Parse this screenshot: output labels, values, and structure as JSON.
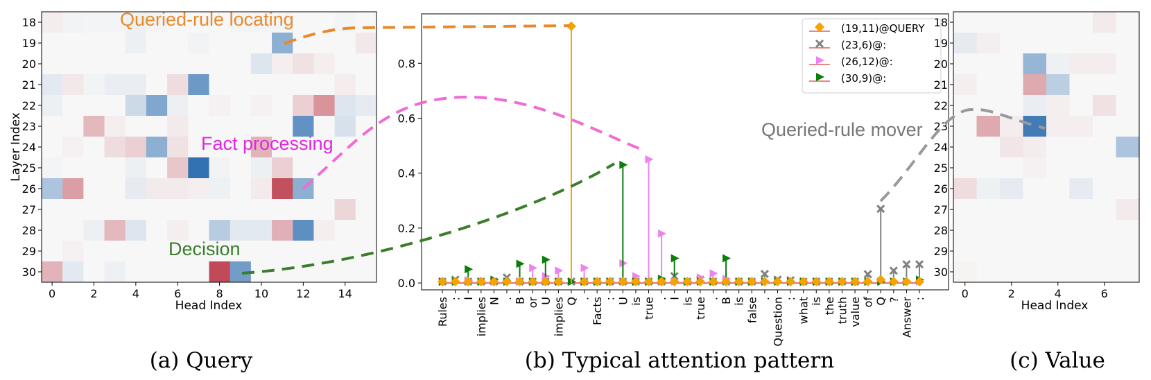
{
  "captions": {
    "a": "(a) Query",
    "b": "(b) Typical attention pattern",
    "c": "(c) Value"
  },
  "annotations": {
    "queried_rule_locating": "Queried-rule locating",
    "fact_processing": "Fact processing",
    "decision": "Decision",
    "queried_rule_mover": "Queried-rule mover"
  },
  "colors": {
    "orange": "#e88a2c",
    "magenta": "#e026e0",
    "pink_dash": "#f06bd6",
    "green": "#3a7d2a",
    "gray": "#999999",
    "series_query": "#f5a300",
    "series_gray": "#808080",
    "series_pink": "#ee82ee",
    "series_green": "#0a7d0a",
    "stem_base": "#e03c3c"
  },
  "chart_data": [
    {
      "type": "heatmap",
      "id": "query",
      "xlabel": "Head Index",
      "ylabel": "Layer Index",
      "x_ticks": [
        "0",
        "2",
        "4",
        "6",
        "8",
        "10",
        "12",
        "14"
      ],
      "y_labels": [
        "18",
        "19",
        "20",
        "21",
        "22",
        "23",
        "24",
        "25",
        "26",
        "27",
        "28",
        "29",
        "30"
      ],
      "n_cols": 16,
      "vmin": -1,
      "vmax": 1,
      "values": [
        [
          0.05,
          -0.03,
          -0.02,
          -0.02,
          -0.04,
          -0.02,
          0,
          0,
          0,
          -0.02,
          -0.02,
          -0.02,
          0,
          0,
          -0.02,
          0
        ],
        [
          0,
          0,
          0,
          0,
          -0.05,
          0,
          0,
          -0.03,
          0,
          0,
          0,
          -0.5,
          0,
          0,
          0,
          0.07
        ],
        [
          0,
          0,
          0,
          0,
          0,
          0,
          0,
          0,
          0,
          0,
          -0.12,
          0.04,
          0.1,
          0.04,
          0,
          0
        ],
        [
          -0.1,
          0.07,
          -0.03,
          -0.06,
          -0.06,
          0,
          0.12,
          -0.65,
          0,
          0,
          0,
          0,
          0,
          0,
          0.05,
          0
        ],
        [
          -0.05,
          0,
          0,
          0,
          -0.2,
          -0.55,
          -0.05,
          0,
          0.03,
          0,
          0.03,
          0,
          0.18,
          0.45,
          -0.12,
          -0.08
        ],
        [
          0,
          0,
          0.28,
          0.04,
          0,
          0,
          0.06,
          0,
          0,
          0,
          0,
          0,
          -0.7,
          0,
          -0.15,
          0
        ],
        [
          0,
          0.03,
          0,
          0.12,
          0.18,
          -0.5,
          0.1,
          0,
          0,
          0,
          0.3,
          0,
          0,
          0,
          0,
          0
        ],
        [
          -0.02,
          0,
          0,
          0,
          -0.05,
          0,
          0.22,
          -0.92,
          -0.03,
          0,
          -0.05,
          0.18,
          0,
          0,
          0,
          0
        ],
        [
          -0.35,
          0.4,
          0,
          0,
          -0.08,
          0.06,
          0.06,
          0.04,
          -0.04,
          0,
          0.06,
          0.75,
          -0.5,
          0,
          0,
          0
        ],
        [
          0,
          0,
          0,
          0,
          0,
          0,
          0,
          0,
          0,
          0,
          0,
          0,
          0,
          0,
          0.15,
          0
        ],
        [
          0,
          0,
          -0.05,
          0.28,
          -0.12,
          0,
          0.04,
          0,
          -0.3,
          -0.1,
          -0.1,
          0.32,
          -0.72,
          0.04,
          0,
          0
        ],
        [
          0,
          0.03,
          0,
          0,
          0,
          0,
          0,
          0,
          0,
          0,
          0,
          0,
          0,
          0,
          0,
          0
        ],
        [
          0.3,
          -0.1,
          0,
          -0.04,
          0,
          0,
          0,
          0,
          0.78,
          -0.62,
          0,
          0,
          0,
          0,
          0,
          0
        ]
      ]
    },
    {
      "type": "stem",
      "id": "attention",
      "yticks": [
        "0.0",
        "0.2",
        "0.4",
        "0.6",
        "0.8"
      ],
      "ylim": [
        -0.025,
        0.98
      ],
      "tokens": [
        "Rules",
        ":",
        "I",
        "implies",
        "N",
        ".",
        "B",
        "or",
        "U",
        "implies",
        "Q",
        ".",
        "Facts",
        ":",
        "U",
        "is",
        "true",
        ".",
        "I",
        "is",
        "true",
        ".",
        "B",
        "is",
        "false",
        ".",
        "Question",
        ":",
        "what",
        "is",
        "the",
        "truth",
        "value",
        "of",
        "Q",
        "?",
        "Answer",
        ":"
      ],
      "series": [
        {
          "name": "(19,11)@QUERY",
          "marker": "diamond",
          "values": [
            0.005,
            0.005,
            0.005,
            0.005,
            0.005,
            0.005,
            0.005,
            0.005,
            0.005,
            0.005,
            0.935,
            0.005,
            0.005,
            0.005,
            0.005,
            0.005,
            0.005,
            0.005,
            0.005,
            0.005,
            0.005,
            0.005,
            0.005,
            0.005,
            0.005,
            0.005,
            0.005,
            0.005,
            0.005,
            0.005,
            0.005,
            0.005,
            0.005,
            0.005,
            0.012,
            0.005,
            0.005,
            0.005
          ]
        },
        {
          "name": "(23,6)@:",
          "marker": "x",
          "values": [
            0.005,
            0.012,
            0.005,
            0.005,
            0.005,
            0.02,
            0.005,
            0.005,
            0.005,
            0.005,
            0.005,
            0.005,
            0.005,
            0.005,
            0.005,
            0.005,
            0.005,
            0.005,
            0.025,
            0.005,
            0.012,
            0.005,
            0.005,
            0.005,
            0.005,
            0.033,
            0.012,
            0.01,
            0.005,
            0.005,
            0.005,
            0.005,
            0.005,
            0.032,
            0.27,
            0.045,
            0.068,
            0.068
          ]
        },
        {
          "name": "(26,12)@:",
          "marker": "triangle",
          "values": [
            0.005,
            0.005,
            0.01,
            0.005,
            0.005,
            0.005,
            0.005,
            0.055,
            0.025,
            0.045,
            0.005,
            0.055,
            0.005,
            0.005,
            0.072,
            0.025,
            0.45,
            0.18,
            0.005,
            0.005,
            0.02,
            0.035,
            0.015,
            0.005,
            0.005,
            0.005,
            0.005,
            0.005,
            0.005,
            0.005,
            0.005,
            0.005,
            0.005,
            0.005,
            0.005,
            0.005,
            0.005,
            0.005
          ]
        },
        {
          "name": "(30,9)@:",
          "marker": "flag",
          "values": [
            0.005,
            0.005,
            0.05,
            0.005,
            0.012,
            0.005,
            0.07,
            0.005,
            0.085,
            0.005,
            0.005,
            0.005,
            0.005,
            0.005,
            0.43,
            0.005,
            0.005,
            0.015,
            0.09,
            0.005,
            0.005,
            0.005,
            0.09,
            0.005,
            0.005,
            0.005,
            0.005,
            0.005,
            0.005,
            0.005,
            0.005,
            0.005,
            0.005,
            0.005,
            0.005,
            0.005,
            0.005,
            0.012
          ]
        }
      ]
    },
    {
      "type": "heatmap",
      "id": "value",
      "xlabel": "Head Index",
      "x_ticks": [
        "0",
        "2",
        "4",
        "6"
      ],
      "y_labels": [
        "18",
        "19",
        "20",
        "21",
        "22",
        "23",
        "24",
        "25",
        "26",
        "27",
        "28",
        "29",
        "30"
      ],
      "n_cols": 8,
      "vmin": -1,
      "vmax": 1,
      "values": [
        [
          0,
          0,
          0,
          0,
          0,
          0,
          0.06,
          0
        ],
        [
          -0.08,
          0.04,
          0,
          0,
          0,
          0,
          0,
          0
        ],
        [
          0,
          0,
          0,
          -0.45,
          -0.04,
          0.05,
          0.05,
          0
        ],
        [
          0.04,
          0,
          0,
          0.35,
          -0.28,
          0,
          0,
          0
        ],
        [
          0,
          0,
          0,
          -0.06,
          0.04,
          0,
          0.1,
          0
        ],
        [
          0,
          0.35,
          0.05,
          -0.85,
          0.04,
          0.04,
          0,
          0
        ],
        [
          0,
          0,
          0.08,
          0.05,
          0,
          0,
          0,
          -0.35
        ],
        [
          0,
          0,
          0,
          0.03,
          0,
          0,
          0,
          0
        ],
        [
          0.12,
          -0.04,
          -0.08,
          0,
          0,
          -0.08,
          0,
          0
        ],
        [
          0,
          0,
          0,
          0,
          0,
          0,
          0,
          0.06
        ],
        [
          0,
          0,
          0,
          0,
          0,
          0,
          0,
          0
        ],
        [
          0,
          0,
          0,
          0,
          0,
          0,
          0,
          0
        ],
        [
          0.02,
          0,
          0,
          0,
          0,
          0,
          0,
          0
        ]
      ]
    }
  ]
}
